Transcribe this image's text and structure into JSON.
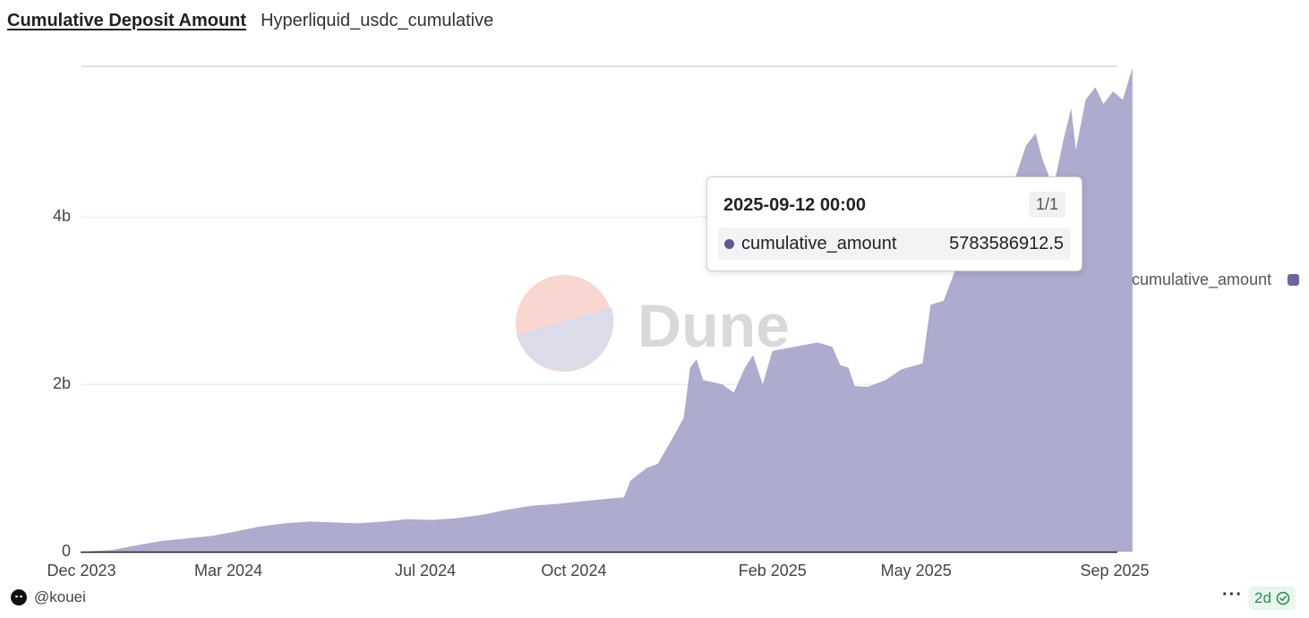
{
  "header": {
    "title": "Cumulative Deposit Amount",
    "subtitle": "Hyperliquid_usdc_cumulative"
  },
  "watermark": {
    "text": "Dune"
  },
  "tooltip": {
    "date": "2025-09-12 00:00",
    "count": "1/1",
    "series_name": "cumulative_amount",
    "value": "5783586912.5"
  },
  "legend": {
    "label": "cumulative_amount"
  },
  "footer": {
    "username": "@kouei",
    "age": "2d"
  },
  "colors": {
    "area": "#a9a7cb",
    "accent": "#5d5894",
    "watermark_top": "#f9d6d0",
    "watermark_bottom": "#dcdce8"
  },
  "icons": {
    "avatar": "user-avatar-icon",
    "more": "more-dots-icon",
    "status": "check-circle-icon"
  },
  "chart_data": {
    "type": "area",
    "title": "",
    "xlabel": "",
    "ylabel": "",
    "ylim": [
      0,
      5800000000
    ],
    "grid": true,
    "legend_position": "right",
    "y_ticks": [
      {
        "value": 0,
        "label": "0"
      },
      {
        "value": 2000000000,
        "label": "2b"
      },
      {
        "value": 4000000000,
        "label": "4b"
      }
    ],
    "x_ticks": [
      {
        "date": "2023-12-01",
        "label": "Dec 2023"
      },
      {
        "date": "2024-03-01",
        "label": "Mar 2024"
      },
      {
        "date": "2024-07-01",
        "label": "Jul 2024"
      },
      {
        "date": "2024-10-01",
        "label": "Oct 2024"
      },
      {
        "date": "2025-02-01",
        "label": "Feb 2025"
      },
      {
        "date": "2025-05-01",
        "label": "May 2025"
      },
      {
        "date": "2025-09-01",
        "label": "Sep 2025"
      }
    ],
    "series": [
      {
        "name": "cumulative_amount",
        "points": [
          [
            "2023-12-01",
            0
          ],
          [
            "2023-12-20",
            20000000
          ],
          [
            "2024-01-05",
            80000000
          ],
          [
            "2024-01-20",
            130000000
          ],
          [
            "2024-02-05",
            160000000
          ],
          [
            "2024-02-20",
            190000000
          ],
          [
            "2024-03-05",
            240000000
          ],
          [
            "2024-03-20",
            300000000
          ],
          [
            "2024-04-05",
            340000000
          ],
          [
            "2024-04-20",
            360000000
          ],
          [
            "2024-05-05",
            350000000
          ],
          [
            "2024-05-20",
            340000000
          ],
          [
            "2024-06-05",
            360000000
          ],
          [
            "2024-06-20",
            390000000
          ],
          [
            "2024-07-05",
            380000000
          ],
          [
            "2024-07-20",
            400000000
          ],
          [
            "2024-08-05",
            440000000
          ],
          [
            "2024-08-20",
            500000000
          ],
          [
            "2024-09-05",
            550000000
          ],
          [
            "2024-09-20",
            570000000
          ],
          [
            "2024-10-05",
            600000000
          ],
          [
            "2024-10-20",
            630000000
          ],
          [
            "2024-11-01",
            650000000
          ],
          [
            "2024-11-05",
            850000000
          ],
          [
            "2024-11-15",
            1000000000
          ],
          [
            "2024-11-22",
            1050000000
          ],
          [
            "2024-12-01",
            1350000000
          ],
          [
            "2024-12-08",
            1600000000
          ],
          [
            "2024-12-12",
            2200000000
          ],
          [
            "2024-12-16",
            2300000000
          ],
          [
            "2024-12-20",
            2050000000
          ],
          [
            "2025-01-01",
            2000000000
          ],
          [
            "2025-01-08",
            1900000000
          ],
          [
            "2025-01-15",
            2200000000
          ],
          [
            "2025-01-20",
            2350000000
          ],
          [
            "2025-01-26",
            2000000000
          ],
          [
            "2025-02-01",
            2400000000
          ],
          [
            "2025-02-15",
            2450000000
          ],
          [
            "2025-03-01",
            2500000000
          ],
          [
            "2025-03-10",
            2450000000
          ],
          [
            "2025-03-15",
            2230000000
          ],
          [
            "2025-03-20",
            2200000000
          ],
          [
            "2025-03-24",
            1980000000
          ],
          [
            "2025-04-01",
            1970000000
          ],
          [
            "2025-04-12",
            2050000000
          ],
          [
            "2025-04-22",
            2180000000
          ],
          [
            "2025-05-05",
            2250000000
          ],
          [
            "2025-05-10",
            2950000000
          ],
          [
            "2025-05-18",
            3000000000
          ],
          [
            "2025-05-28",
            3500000000
          ],
          [
            "2025-06-05",
            3800000000
          ],
          [
            "2025-06-15",
            4000000000
          ],
          [
            "2025-06-25",
            4300000000
          ],
          [
            "2025-07-02",
            4500000000
          ],
          [
            "2025-07-08",
            4850000000
          ],
          [
            "2025-07-14",
            5000000000
          ],
          [
            "2025-07-18",
            4700000000
          ],
          [
            "2025-07-25",
            4350000000
          ],
          [
            "2025-07-31",
            4900000000
          ],
          [
            "2025-08-05",
            5300000000
          ],
          [
            "2025-08-08",
            4800000000
          ],
          [
            "2025-08-14",
            5400000000
          ],
          [
            "2025-08-20",
            5550000000
          ],
          [
            "2025-08-25",
            5350000000
          ],
          [
            "2025-08-31",
            5500000000
          ],
          [
            "2025-09-06",
            5400000000
          ],
          [
            "2025-09-12",
            5783586912.5
          ]
        ]
      }
    ]
  }
}
